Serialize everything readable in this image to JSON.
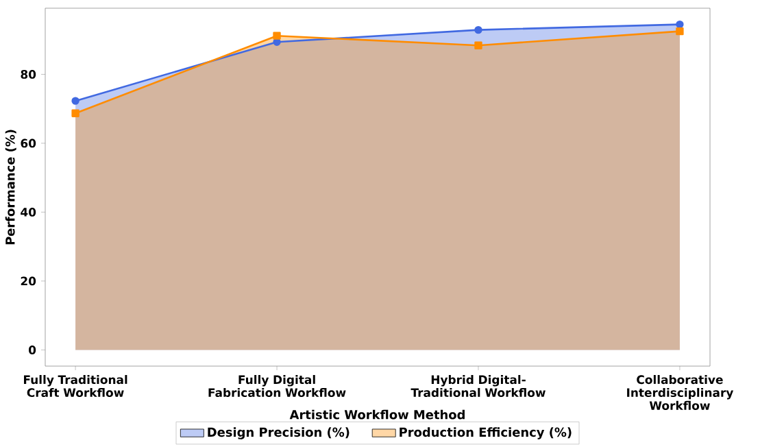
{
  "chart_data": {
    "type": "area",
    "xlabel": "Artistic Workflow Method",
    "ylabel": "Performance (%)",
    "categories": [
      "Fully Traditional Craft Workflow",
      "Fully Digital Fabrication Workflow",
      "Hybrid Digital-Traditional Workflow",
      "Collaborative Interdisciplinary Workflow"
    ],
    "series": [
      {
        "name": "Design Precision (%)",
        "color": "#4169e1",
        "marker": "circle",
        "values": [
          72.3,
          89.4,
          92.9,
          94.5
        ]
      },
      {
        "name": "Production Efficiency (%)",
        "color": "#ff8c00",
        "marker": "square",
        "values": [
          68.7,
          91.2,
          88.4,
          92.5
        ]
      }
    ],
    "ylim": [
      -4.7,
      99.2
    ],
    "yticks": [
      0,
      20,
      40,
      60,
      80
    ],
    "grid": false,
    "legend": "bottom"
  }
}
